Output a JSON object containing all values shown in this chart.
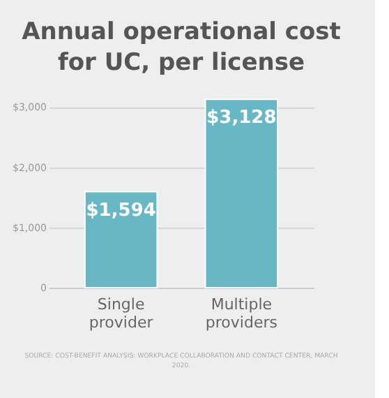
{
  "chart_data": {
    "type": "bar",
    "title": "Annual operational cost for UC, per license",
    "categories": [
      "Single provider",
      "Multiple providers"
    ],
    "values": [
      1594,
      3128
    ],
    "value_labels": [
      "$1,594",
      "$3,128"
    ],
    "color": "#67b8c4",
    "ylim": [
      0,
      3200
    ],
    "yticks": [
      {
        "value": 0,
        "label": "0"
      },
      {
        "value": 1000,
        "label": "$1,000"
      },
      {
        "value": 2000,
        "label": "$2,000"
      },
      {
        "value": 3000,
        "label": "$3,000"
      }
    ],
    "grid": "y",
    "annotations": [
      "SOURCE: COST-BENEFIT ANALYSIS: WORKPLACE COLLABORATION AND CONTACT CENTER, MARCH 2020."
    ]
  }
}
